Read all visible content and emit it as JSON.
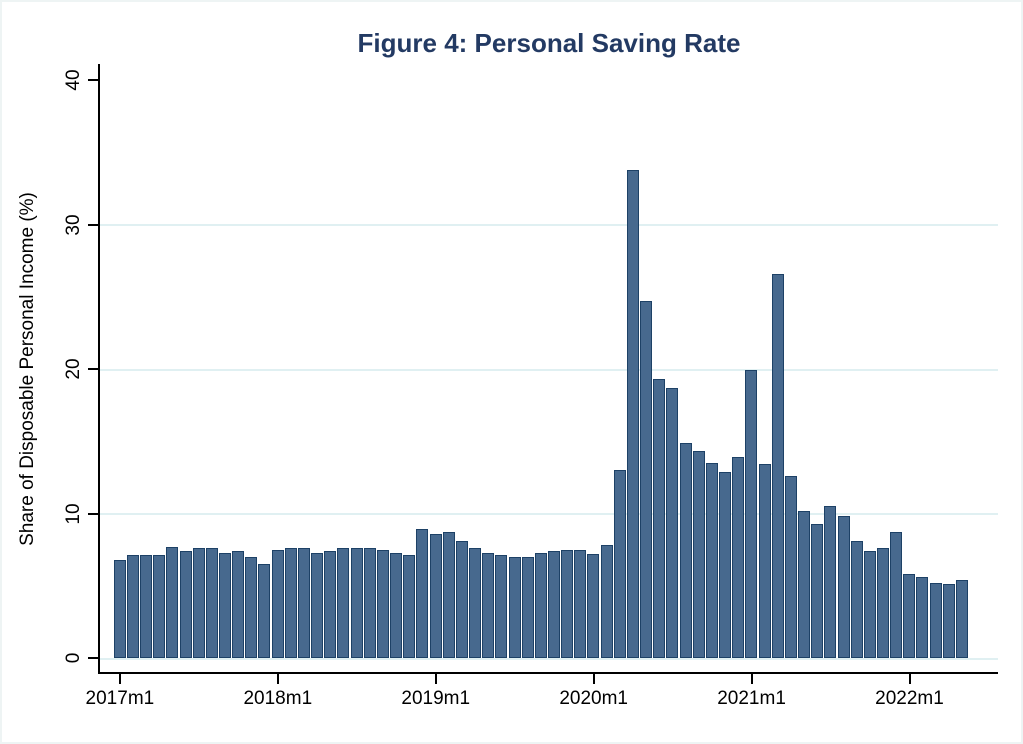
{
  "chart_data": {
    "type": "bar",
    "title": "Figure 4: Personal Saving Rate",
    "ylabel": "Share of Disposable Personal Income (%)",
    "xlabel": "",
    "ylim": [
      0,
      40
    ],
    "yticks": [
      0,
      10,
      20,
      30,
      40
    ],
    "grid": true,
    "gridline_values": [
      0,
      10,
      20,
      30
    ],
    "x_tick_labels": [
      "2017m1",
      "2018m1",
      "2019m1",
      "2020m1",
      "2021m1",
      "2022m1"
    ],
    "categories": [
      "2017m1",
      "2017m2",
      "2017m3",
      "2017m4",
      "2017m5",
      "2017m6",
      "2017m7",
      "2017m8",
      "2017m9",
      "2017m10",
      "2017m11",
      "2017m12",
      "2018m1",
      "2018m2",
      "2018m3",
      "2018m4",
      "2018m5",
      "2018m6",
      "2018m7",
      "2018m8",
      "2018m9",
      "2018m10",
      "2018m11",
      "2018m12",
      "2019m1",
      "2019m2",
      "2019m3",
      "2019m4",
      "2019m5",
      "2019m6",
      "2019m7",
      "2019m8",
      "2019m9",
      "2019m10",
      "2019m11",
      "2019m12",
      "2020m1",
      "2020m2",
      "2020m3",
      "2020m4",
      "2020m5",
      "2020m6",
      "2020m7",
      "2020m8",
      "2020m9",
      "2020m10",
      "2020m11",
      "2020m12",
      "2021m1",
      "2021m2",
      "2021m3",
      "2021m4",
      "2021m5",
      "2021m6",
      "2021m7",
      "2021m8",
      "2021m9",
      "2021m10",
      "2021m11",
      "2021m12",
      "2022m1",
      "2022m2",
      "2022m3",
      "2022m4",
      "2022m5"
    ],
    "values": [
      6.8,
      7.1,
      7.1,
      7.1,
      7.7,
      7.4,
      7.6,
      7.6,
      7.3,
      7.4,
      7.0,
      6.5,
      7.5,
      7.6,
      7.6,
      7.3,
      7.4,
      7.6,
      7.6,
      7.6,
      7.5,
      7.3,
      7.1,
      8.9,
      8.6,
      8.7,
      8.1,
      7.6,
      7.3,
      7.1,
      7.0,
      7.0,
      7.3,
      7.4,
      7.5,
      7.5,
      7.2,
      7.8,
      13.0,
      33.8,
      24.7,
      19.3,
      18.7,
      14.9,
      14.3,
      13.5,
      12.9,
      13.9,
      19.9,
      13.4,
      26.6,
      12.6,
      10.2,
      9.3,
      10.5,
      9.8,
      8.1,
      7.4,
      7.6,
      8.7,
      5.8,
      5.6,
      5.2,
      5.1,
      5.4
    ],
    "colors": {
      "bar_fill": "#47698E",
      "bar_border": "#1D4166",
      "gridline": "#E0F0F2",
      "title": "#233A63",
      "axis": "#000000"
    },
    "legend": null
  }
}
